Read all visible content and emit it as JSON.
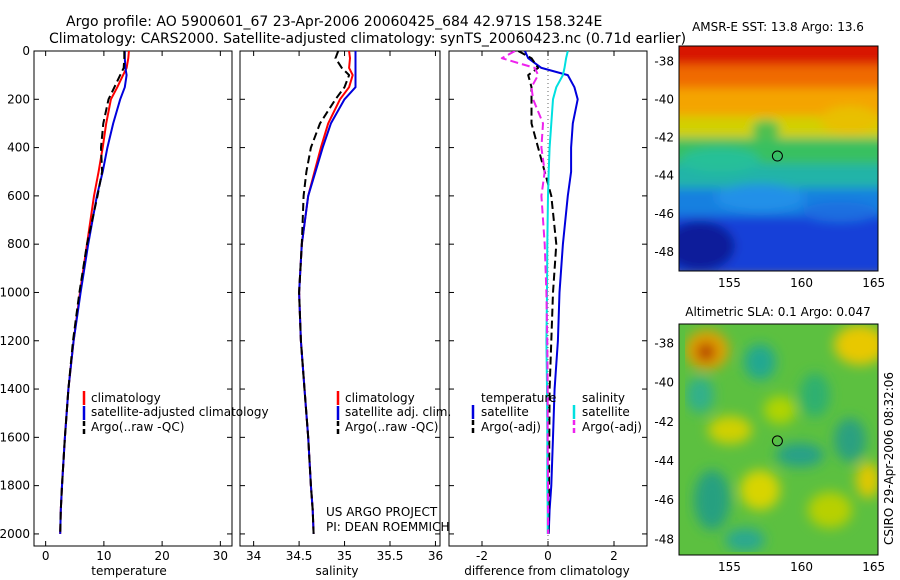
{
  "header": {
    "line1": "Argo profile: AO 5900601_67 23-Apr-2006 20060425_684 42.971S 158.324E",
    "line2": "Climatology: CARS2000. Satellite-adjusted climatology: synTS_20060423.nc (0.71d earlier)"
  },
  "colors": {
    "climatology": "#ff0000",
    "satellite": "#0000dd",
    "argo": "#000000",
    "argo_salinity_adj": "#ee22ee",
    "satellite_salinity": "#00e0e0"
  },
  "chart_data": [
    {
      "type": "line",
      "id": "temperature",
      "xlabel": "temperature",
      "xlim": [
        -2,
        32
      ],
      "ylim": [
        2050,
        0
      ],
      "xticks": [
        "0",
        "10",
        "20",
        "30"
      ],
      "yticks": [
        "0",
        "200",
        "400",
        "600",
        "800",
        "1000",
        "1200",
        "1400",
        "1600",
        "1800",
        "2000"
      ],
      "legend": [
        "climatology",
        "satellite-adjusted climatology",
        "Argo(..raw -QC)"
      ],
      "series": [
        {
          "name": "climatology",
          "color": "#ff0000",
          "dash": "",
          "x": [
            14.3,
            14.2,
            13.9,
            13.3,
            12.3,
            11.2,
            10.4,
            9.8,
            9.1,
            8.3,
            7.1,
            5.9,
            4.8,
            3.9,
            3.3,
            2.8,
            2.6,
            2.5
          ],
          "y": [
            0,
            30,
            70,
            100,
            150,
            200,
            300,
            400,
            500,
            600,
            800,
            1000,
            1200,
            1400,
            1600,
            1800,
            1900,
            2000
          ]
        },
        {
          "name": "satellite-adjusted climatology",
          "color": "#0000dd",
          "dash": "",
          "x": [
            13.6,
            13.6,
            13.7,
            13.9,
            13.6,
            12.8,
            11.6,
            10.6,
            9.8,
            8.8,
            7.3,
            6.0,
            4.8,
            3.9,
            3.3,
            2.8,
            2.6,
            2.5
          ],
          "y": [
            0,
            30,
            70,
            100,
            150,
            200,
            300,
            400,
            500,
            600,
            800,
            1000,
            1200,
            1400,
            1600,
            1800,
            1900,
            2000
          ]
        },
        {
          "name": "Argo(..raw -QC)",
          "color": "#000000",
          "dash": "8,4",
          "x": [
            13.5,
            13.5,
            13.4,
            12.8,
            11.8,
            10.8,
            9.9,
            9.5,
            9.7,
            8.9,
            7.1,
            5.8,
            4.7,
            3.9,
            3.3,
            2.8,
            2.6,
            2.5
          ],
          "y": [
            0,
            30,
            70,
            100,
            150,
            200,
            300,
            400,
            500,
            600,
            800,
            1000,
            1200,
            1400,
            1600,
            1800,
            1900,
            2000
          ]
        }
      ]
    },
    {
      "type": "line",
      "id": "salinity",
      "xlabel": "salinity",
      "xlim": [
        33.85,
        36.05
      ],
      "ylim": [
        2050,
        0
      ],
      "xticks": [
        "34",
        "34.5",
        "35",
        "35.5",
        "36"
      ],
      "legend": [
        "climatology",
        "satellite adj. clim.",
        "Argo(..raw -QC)"
      ],
      "annotation": [
        "US ARGO PROJECT",
        "PI: DEAN ROEMMICH"
      ],
      "series": [
        {
          "name": "climatology",
          "color": "#ff0000",
          "dash": "",
          "x": [
            35.05,
            35.06,
            35.05,
            35.09,
            35.05,
            34.95,
            34.82,
            34.74,
            34.67,
            34.6,
            34.53,
            34.5,
            34.52,
            34.56,
            34.6,
            34.63,
            34.65,
            34.66
          ],
          "y": [
            0,
            30,
            70,
            100,
            150,
            200,
            300,
            400,
            500,
            600,
            800,
            1000,
            1200,
            1400,
            1600,
            1800,
            1900,
            2000
          ]
        },
        {
          "name": "satellite adj. clim.",
          "color": "#0000dd",
          "dash": "",
          "x": [
            35.12,
            35.12,
            35.12,
            35.12,
            35.12,
            35.0,
            34.85,
            34.76,
            34.68,
            34.6,
            34.53,
            34.5,
            34.52,
            34.56,
            34.6,
            34.63,
            34.65,
            34.66
          ],
          "y": [
            0,
            30,
            70,
            100,
            150,
            200,
            300,
            400,
            500,
            600,
            800,
            1000,
            1200,
            1400,
            1600,
            1800,
            1900,
            2000
          ]
        },
        {
          "name": "Argo(..raw -QC)",
          "color": "#000000",
          "dash": "8,4",
          "x": [
            34.93,
            34.9,
            34.97,
            35.05,
            35.0,
            34.9,
            34.73,
            34.63,
            34.58,
            34.55,
            34.53,
            34.5,
            34.52,
            34.56,
            34.6,
            34.63,
            34.65,
            34.66
          ],
          "y": [
            0,
            30,
            70,
            100,
            150,
            200,
            300,
            400,
            500,
            600,
            800,
            1000,
            1200,
            1400,
            1600,
            1800,
            1900,
            2000
          ]
        }
      ]
    },
    {
      "type": "line",
      "id": "difference",
      "xlabel": "difference from climatology",
      "xlim": [
        -3,
        3
      ],
      "ylim": [
        2050,
        0
      ],
      "xticks": [
        "-2",
        "0",
        "2"
      ],
      "legend_left_title": "temperature",
      "legend_left": [
        "satellite",
        "Argo(-adj)"
      ],
      "legend_right_title": "salinity",
      "legend_right": [
        "satellite",
        "Argo(-adj)"
      ],
      "series": [
        {
          "name": "temperature satellite",
          "color": "#0000dd",
          "dash": "",
          "x": [
            -0.7,
            -0.6,
            -0.2,
            0.6,
            0.8,
            0.9,
            0.75,
            0.7,
            0.7,
            0.6,
            0.45,
            0.35,
            0.3,
            0.2,
            0.15,
            0.1,
            0.05,
            0.02
          ],
          "y": [
            0,
            30,
            70,
            100,
            150,
            200,
            300,
            400,
            500,
            600,
            800,
            1000,
            1200,
            1400,
            1600,
            1800,
            1900,
            2000
          ]
        },
        {
          "name": "temperature Argo(-adj)",
          "color": "#000000",
          "dash": "8,4",
          "x": [
            -0.9,
            -0.5,
            -0.3,
            -0.6,
            -0.5,
            -0.5,
            -0.5,
            -0.3,
            -0.1,
            0.1,
            0.25,
            0.15,
            0.1,
            0.05,
            0.04,
            0.03,
            0.02,
            0.01
          ],
          "y": [
            0,
            30,
            70,
            100,
            150,
            200,
            300,
            400,
            500,
            600,
            800,
            1000,
            1200,
            1400,
            1600,
            1800,
            1900,
            2000
          ]
        },
        {
          "name": "salinity satellite",
          "color": "#00e0e0",
          "dash": "",
          "x": [
            0.6,
            0.55,
            0.5,
            0.45,
            0.25,
            0.15,
            0.1,
            0.05,
            0.02,
            0.0,
            -0.02,
            -0.03,
            -0.05,
            -0.03,
            -0.02,
            -0.02,
            -0.01,
            -0.01
          ],
          "y": [
            0,
            30,
            70,
            100,
            150,
            200,
            300,
            400,
            500,
            600,
            800,
            1000,
            1200,
            1400,
            1600,
            1800,
            1900,
            2000
          ]
        },
        {
          "name": "salinity Argo(-adj)",
          "color": "#ee22ee",
          "dash": "8,4",
          "x": [
            -1.0,
            -1.4,
            -0.4,
            -0.3,
            -0.5,
            -0.45,
            -0.15,
            -0.2,
            -0.1,
            -0.2,
            -0.1,
            -0.05,
            -0.02,
            -0.01,
            -0.01,
            0.0,
            0.0,
            0.0
          ],
          "y": [
            0,
            30,
            70,
            100,
            150,
            200,
            300,
            400,
            500,
            600,
            800,
            1000,
            1200,
            1400,
            1600,
            1800,
            1900,
            2000
          ]
        }
      ]
    },
    {
      "type": "heatmap",
      "id": "sst-map",
      "title": "AMSR-E SST: 13.8 Argo: 13.6",
      "xlim": [
        151.5,
        165.3
      ],
      "ylim": [
        -49,
        -37.2
      ],
      "xticks": [
        "155",
        "160",
        "165"
      ],
      "yticks": [
        "-38",
        "-40",
        "-42",
        "-44",
        "-46",
        "-48"
      ],
      "marker_lon": 158.324,
      "marker_lat": -42.971
    },
    {
      "type": "heatmap",
      "id": "sla-map",
      "title": "Altimetric SLA: 0.1 Argo: 0.047",
      "xlim": [
        151.5,
        165.3
      ],
      "ylim": [
        -48.8,
        -37.0
      ],
      "xticks": [
        "155",
        "160",
        "165"
      ],
      "yticks": [
        "-38",
        "-40",
        "-42",
        "-44",
        "-46",
        "-48"
      ],
      "marker_lon": 158.324,
      "marker_lat": -42.971
    }
  ],
  "credit": "CSIRO 29-Apr-2006 08:32:06"
}
